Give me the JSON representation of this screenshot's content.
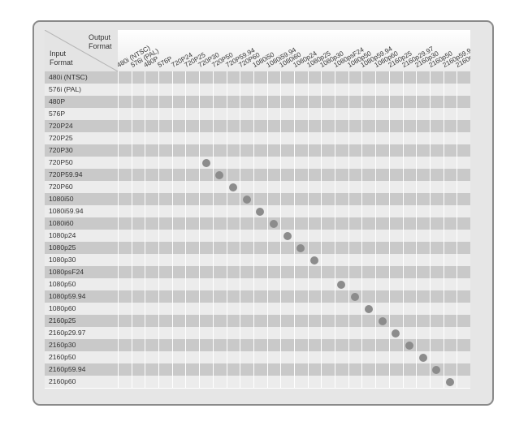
{
  "table": {
    "header_output": "Output",
    "header_output_format": "Format",
    "header_input": "Input",
    "header_input_format": "Format",
    "columns": [
      "480i (NTSC)",
      "576i (PAL)",
      "480P",
      "576P",
      "720P24",
      "720P25",
      "720P30",
      "720P50",
      "720P59.94",
      "720P60",
      "1080i50",
      "1080i59.94",
      "1080i60",
      "1080p24",
      "1080p25",
      "1080p30",
      "1080psF24",
      "1080p50",
      "1080p59.94",
      "1080p60",
      "2160p25",
      "2160p29.97",
      "2160p30",
      "2160p50",
      "2160p59.94",
      "2160p60"
    ],
    "rows": [
      "480i (NTSC)",
      "576i (PAL)",
      "480P",
      "576P",
      "720P24",
      "720P25",
      "720P30",
      "720P50",
      "720P59.94",
      "720P60",
      "1080i50",
      "1080i59.94",
      "1080i60",
      "1080p24",
      "1080p25",
      "1080p30",
      "1080psF24",
      "1080p50",
      "1080p59.94",
      "1080p60",
      "2160p25",
      "2160p29.97",
      "2160p30",
      "2160p50",
      "2160p59.94",
      "2160p60"
    ],
    "supported": [
      [
        "720P50",
        "720P30"
      ],
      [
        "720P59.94",
        "720P50"
      ],
      [
        "720P60",
        "720P59.94"
      ],
      [
        "1080i50",
        "720P60"
      ],
      [
        "1080i59.94",
        "1080i50"
      ],
      [
        "1080i60",
        "1080i59.94"
      ],
      [
        "1080p24",
        "1080i60"
      ],
      [
        "1080p25",
        "1080p24"
      ],
      [
        "1080p30",
        "1080p25"
      ],
      [
        "1080p50",
        "1080psF24"
      ],
      [
        "1080p59.94",
        "1080p50"
      ],
      [
        "1080p60",
        "1080p59.94"
      ],
      [
        "2160p25",
        "1080p60"
      ],
      [
        "2160p29.97",
        "2160p25"
      ],
      [
        "2160p30",
        "2160p29.97"
      ],
      [
        "2160p50",
        "2160p30"
      ],
      [
        "2160p59.94",
        "2160p50"
      ],
      [
        "2160p60",
        "2160p59.94"
      ]
    ]
  },
  "colors": {
    "row_dark": "#c9c9c9",
    "row_light": "#ececec",
    "dot": "#8c8c8c",
    "frame_bg": "#e6e6e6",
    "frame_border": "#8a8a8a"
  }
}
